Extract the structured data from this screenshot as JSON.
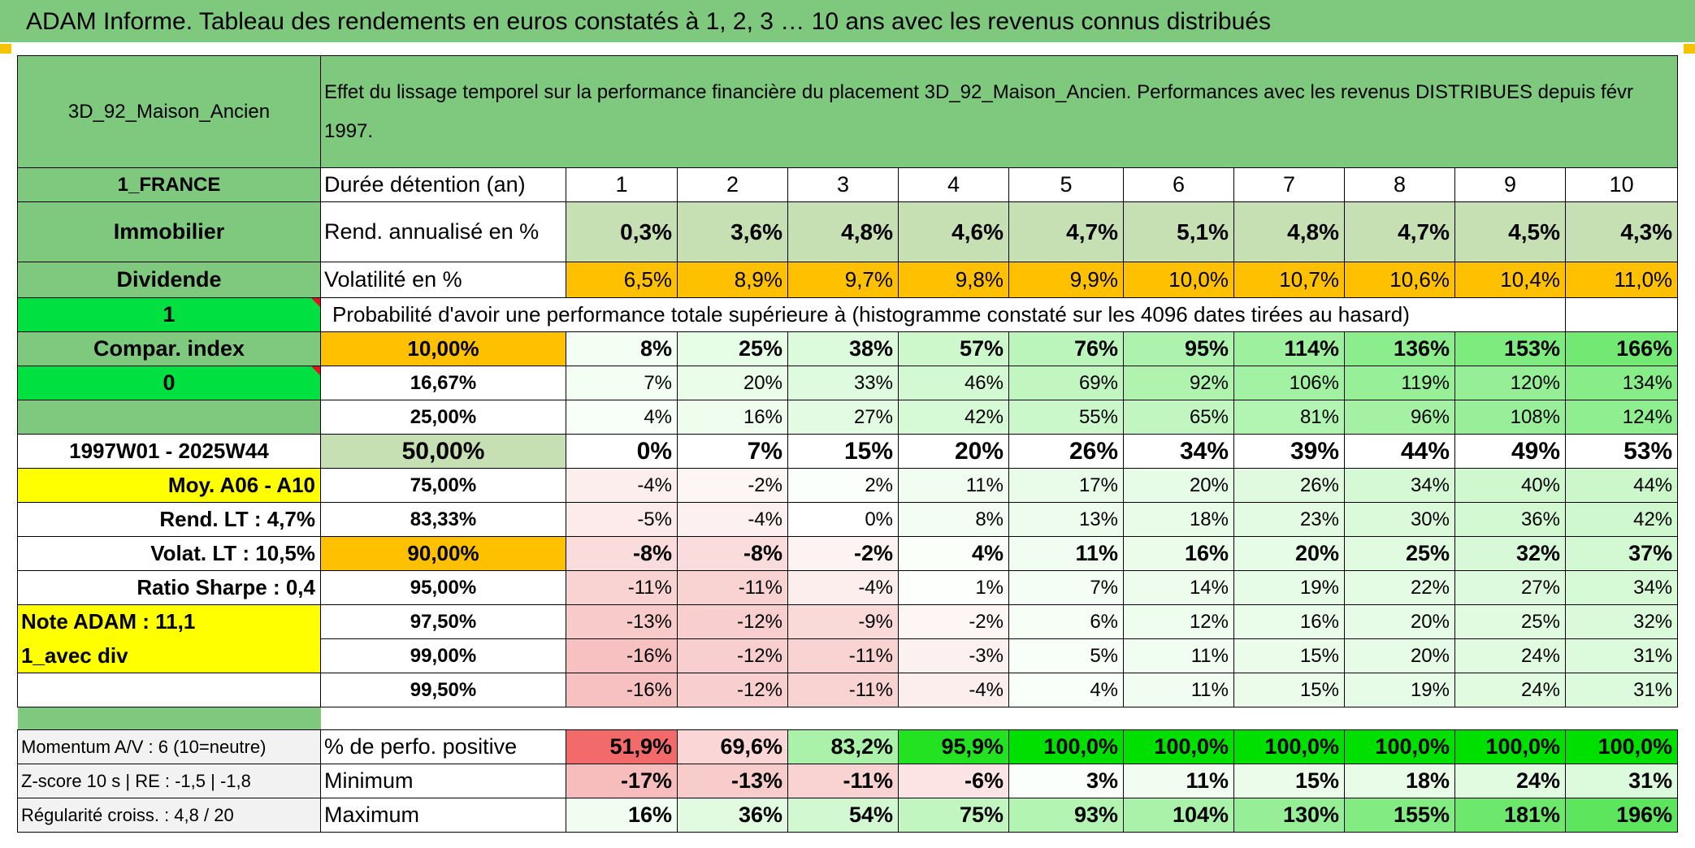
{
  "banner": "ADAM Informe. Tableau des rendements en euros constatés à 1, 2, 3 … 10 ans avec les revenus connus distribués",
  "placement": "3D_92_Maison_Ancien",
  "description": "Effet du lissage temporel sur la performance financière du placement 3D_92_Maison_Ancien. Performances avec les revenus DISTRIBUES depuis févr 1997.",
  "left": {
    "pays": "1_FRANCE",
    "classe": "Immobilier",
    "revenu": "Dividende",
    "flag1": "1",
    "compar": "Compar. index",
    "flag0": "0",
    "periode": "1997W01 - 2025W44",
    "moy": "Moy. A06 - A10",
    "rend_lt": "Rend. LT :   4,7%",
    "volat_lt": "Volat. LT :   10,5%",
    "sharpe": "Ratio Sharpe :   0,4",
    "note": "Note ADAM : 11,1",
    "avec_div": "1_avec div"
  },
  "labels": {
    "duree": "Durée détention (an)",
    "rend": "Rend. annualisé en %",
    "vol": "Volatilité en %",
    "proba": "Probabilité d'avoir une performance totale supérieure à (histogramme constaté sur les 4096 dates tirées au hasard)",
    "pos": "% de perfo. positive",
    "min": "Minimum",
    "max": "Maximum"
  },
  "footer": {
    "momentum": "Momentum A/V : 6 (10=neutre)",
    "zscore": "Z-score 10 s | RE : -1,5 | -1,8",
    "regularite": "Régularité croiss. : 4,8 / 20"
  },
  "years": [
    "1",
    "2",
    "3",
    "4",
    "5",
    "6",
    "7",
    "8",
    "9",
    "10"
  ],
  "rend": [
    "0,3%",
    "3,6%",
    "4,8%",
    "4,6%",
    "4,7%",
    "5,1%",
    "4,8%",
    "4,7%",
    "4,5%",
    "4,3%"
  ],
  "vol": [
    "6,5%",
    "8,9%",
    "9,7%",
    "9,8%",
    "9,9%",
    "10,0%",
    "10,7%",
    "10,6%",
    "10,4%",
    "11,0%"
  ],
  "quantiles": [
    {
      "q": "10,00%",
      "v": [
        "8%",
        "25%",
        "38%",
        "57%",
        "76%",
        "95%",
        "114%",
        "136%",
        "153%",
        "166%"
      ]
    },
    {
      "q": "16,67%",
      "v": [
        "7%",
        "20%",
        "33%",
        "46%",
        "69%",
        "92%",
        "106%",
        "119%",
        "120%",
        "134%"
      ]
    },
    {
      "q": "25,00%",
      "v": [
        "4%",
        "16%",
        "27%",
        "42%",
        "55%",
        "65%",
        "81%",
        "96%",
        "108%",
        "124%"
      ]
    },
    {
      "q": "50,00%",
      "v": [
        "0%",
        "7%",
        "15%",
        "20%",
        "26%",
        "34%",
        "39%",
        "44%",
        "49%",
        "53%"
      ]
    },
    {
      "q": "75,00%",
      "v": [
        "-4%",
        "-2%",
        "2%",
        "11%",
        "17%",
        "20%",
        "26%",
        "34%",
        "40%",
        "44%"
      ]
    },
    {
      "q": "83,33%",
      "v": [
        "-5%",
        "-4%",
        "0%",
        "8%",
        "13%",
        "18%",
        "23%",
        "30%",
        "36%",
        "42%"
      ]
    },
    {
      "q": "90,00%",
      "v": [
        "-8%",
        "-8%",
        "-2%",
        "4%",
        "11%",
        "16%",
        "20%",
        "25%",
        "32%",
        "37%"
      ]
    },
    {
      "q": "95,00%",
      "v": [
        "-11%",
        "-11%",
        "-4%",
        "1%",
        "7%",
        "14%",
        "19%",
        "22%",
        "27%",
        "34%"
      ]
    },
    {
      "q": "97,50%",
      "v": [
        "-13%",
        "-12%",
        "-9%",
        "-2%",
        "6%",
        "12%",
        "16%",
        "20%",
        "25%",
        "32%"
      ]
    },
    {
      "q": "99,00%",
      "v": [
        "-16%",
        "-12%",
        "-11%",
        "-3%",
        "5%",
        "11%",
        "15%",
        "20%",
        "24%",
        "31%"
      ]
    },
    {
      "q": "99,50%",
      "v": [
        "-16%",
        "-12%",
        "-11%",
        "-4%",
        "4%",
        "11%",
        "15%",
        "19%",
        "24%",
        "31%"
      ]
    }
  ],
  "pos": [
    "51,9%",
    "69,6%",
    "83,2%",
    "95,9%",
    "100,0%",
    "100,0%",
    "100,0%",
    "100,0%",
    "100,0%",
    "100,0%"
  ],
  "min": [
    "-17%",
    "-13%",
    "-11%",
    "-6%",
    "3%",
    "11%",
    "15%",
    "18%",
    "24%",
    "31%"
  ],
  "max": [
    "16%",
    "36%",
    "54%",
    "75%",
    "93%",
    "104%",
    "130%",
    "155%",
    "181%",
    "196%"
  ]
}
